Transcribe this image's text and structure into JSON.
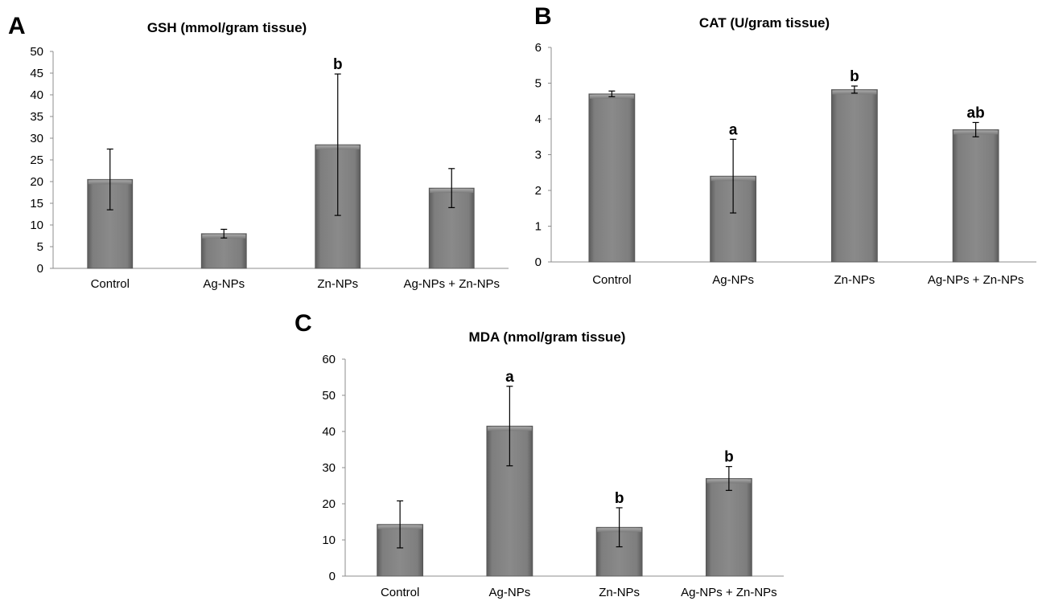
{
  "chart_data": [
    {
      "panel": "A",
      "type": "bar",
      "title": "GSH (mmol/gram tissue)",
      "categories": [
        "Control",
        "Ag-NPs",
        "Zn-NPs",
        "Ag-NPs + Zn-NPs"
      ],
      "values": [
        20.5,
        8,
        28.5,
        18.5
      ],
      "error": [
        7,
        1,
        16.3,
        4.5
      ],
      "significance": [
        "",
        "",
        "b",
        ""
      ],
      "ylim": [
        0,
        50
      ],
      "yticks": [
        0,
        5,
        10,
        15,
        20,
        25,
        30,
        35,
        40,
        45,
        50
      ],
      "xlabel": "",
      "ylabel": "",
      "grid": false,
      "bar_color": "#808080"
    },
    {
      "panel": "B",
      "type": "bar",
      "title": "CAT (U/gram tissue)",
      "categories": [
        "Control",
        "Ag-NPs",
        "Zn-NPs",
        "Ag-NPs + Zn-NPs"
      ],
      "values": [
        4.7,
        2.4,
        4.82,
        3.7
      ],
      "error": [
        0.08,
        1.03,
        0.1,
        0.2
      ],
      "significance": [
        "",
        "a",
        "b",
        "ab"
      ],
      "ylim": [
        0,
        6
      ],
      "yticks": [
        0,
        1,
        2,
        3,
        4,
        5,
        6
      ],
      "xlabel": "",
      "ylabel": "",
      "grid": false,
      "bar_color": "#808080"
    },
    {
      "panel": "C",
      "type": "bar",
      "title": "MDA (nmol/gram tissue)",
      "categories": [
        "Control",
        "Ag-NPs",
        "Zn-NPs",
        "Ag-NPs + Zn-NPs"
      ],
      "values": [
        14.3,
        41.5,
        13.5,
        27
      ],
      "error": [
        6.5,
        11,
        5.4,
        3.3
      ],
      "significance": [
        "",
        "a",
        "b",
        "b"
      ],
      "ylim": [
        0,
        60
      ],
      "yticks": [
        0,
        10,
        20,
        30,
        40,
        50,
        60
      ],
      "xlabel": "",
      "ylabel": "",
      "grid": false,
      "bar_color": "#808080"
    }
  ]
}
